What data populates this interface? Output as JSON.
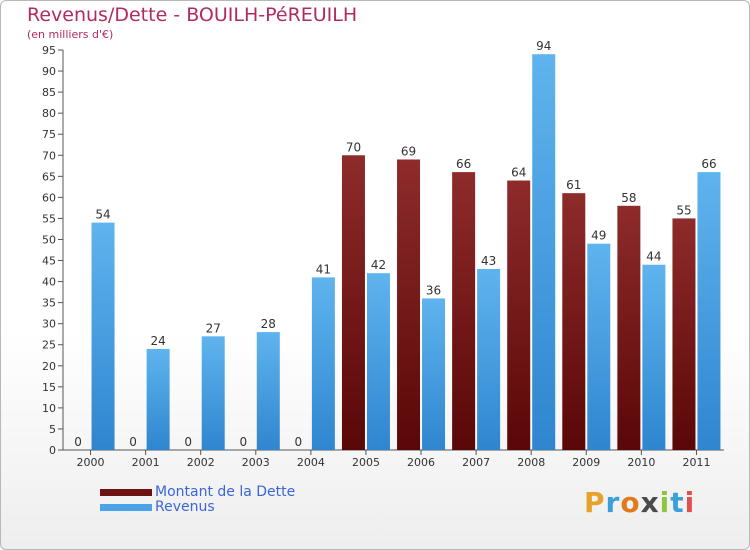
{
  "header": {
    "title": "Revenus/Dette - BOUILH-PéREUILH",
    "subtitle": "(en milliers d'€)"
  },
  "chart_data": {
    "type": "bar",
    "title": "Revenus/Dette - BOUILH-PéREUILH",
    "ylabel": "(en milliers d'€)",
    "xlabel": "",
    "categories": [
      "2000",
      "2001",
      "2002",
      "2003",
      "2004",
      "2005",
      "2006",
      "2007",
      "2008",
      "2009",
      "2010",
      "2011"
    ],
    "series": [
      {
        "name": "Montant de la Dette",
        "color": "#7a1a1a",
        "values": [
          0,
          0,
          0,
          0,
          0,
          70,
          69,
          66,
          64,
          61,
          58,
          55
        ]
      },
      {
        "name": "Revenus",
        "color": "#4aa3e8",
        "values": [
          54,
          24,
          27,
          28,
          41,
          42,
          36,
          43,
          94,
          49,
          44,
          66
        ]
      }
    ],
    "ylim": [
      0,
      95
    ],
    "yticks": [
      0,
      5,
      10,
      15,
      20,
      25,
      30,
      35,
      40,
      45,
      50,
      55,
      60,
      65,
      70,
      75,
      80,
      85,
      90,
      95
    ],
    "grid": false,
    "legend_position": "bottom-left"
  },
  "legend": {
    "items": [
      {
        "label": "Montant de la Dette",
        "color": "#6e1111"
      },
      {
        "label": "Revenus",
        "color": "#4aa3e8"
      }
    ]
  },
  "logo": {
    "letters": [
      "P",
      "r",
      "o",
      "x",
      "i",
      "t",
      "i"
    ],
    "colors": [
      "#e8a12a",
      "#3aa0d8",
      "#e07a1c",
      "#4a4a4a",
      "#8cc63f",
      "#3aa0d8",
      "#e05050"
    ]
  }
}
